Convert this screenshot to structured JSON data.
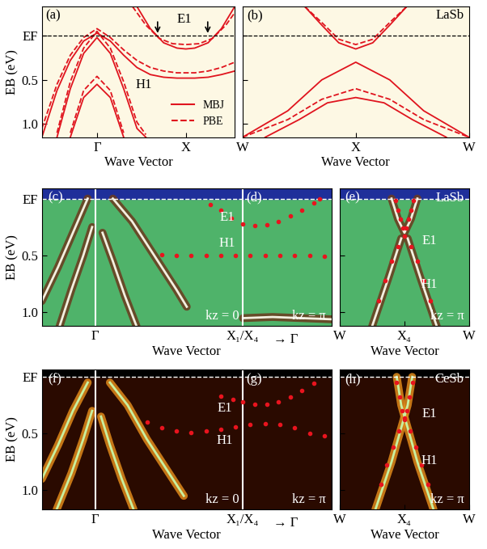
{
  "chart_data": [
    {
      "type": "line",
      "xlabel": "Wave Vector",
      "ylabel": "EB (eV)",
      "xlim": [
        -0.62,
        1.55
      ],
      "ylim": [
        1.15,
        -0.33
      ],
      "xticks": [
        {
          "value": 0,
          "label": "Γ"
        },
        {
          "value": 1,
          "label": "X"
        }
      ],
      "yticks": [
        {
          "value": 0,
          "label": "EF"
        },
        0.5,
        1.0
      ],
      "legend": "lower right",
      "annotations": [
        "(a)",
        "E1",
        "H1"
      ],
      "series": [
        {
          "name": "MBJ",
          "color": "#e0141e",
          "line_style": "solid",
          "curves": [
            {
              "x": [
                -0.62,
                -0.45,
                -0.3,
                -0.15,
                0,
                0.15,
                0.3,
                0.45,
                0.6,
                0.75,
                0.9,
                1.0,
                1.1,
                1.25,
                1.4,
                1.55
              ],
              "y": [
                1.15,
                0.62,
                0.28,
                0.06,
                -0.03,
                0.06,
                0.22,
                0.36,
                0.44,
                0.47,
                0.48,
                0.48,
                0.48,
                0.47,
                0.44,
                0.4
              ]
            },
            {
              "x": [
                -0.45,
                -0.3,
                -0.15,
                0,
                0.15,
                0.3,
                0.45,
                0.55
              ],
              "y": [
                1.15,
                0.6,
                0.2,
                0.02,
                0.2,
                0.6,
                1.05,
                1.15
              ]
            },
            {
              "x": [
                -0.3,
                -0.15,
                0,
                0.15,
                0.3
              ],
              "y": [
                1.15,
                0.7,
                0.55,
                0.7,
                1.15
              ]
            },
            {
              "x": [
                0.45,
                0.6,
                0.75,
                0.9,
                1.0,
                1.1,
                1.25,
                1.4,
                1.55
              ],
              "y": [
                -0.33,
                -0.08,
                0.08,
                0.14,
                0.15,
                0.14,
                0.08,
                -0.08,
                -0.33
              ]
            }
          ]
        },
        {
          "name": "PBE",
          "color": "#e0141e",
          "line_style": "dashed",
          "curves": [
            {
              "x": [
                -0.62,
                -0.45,
                -0.3,
                -0.15,
                0,
                0.15,
                0.3,
                0.45,
                0.6,
                0.75,
                0.9,
                1.0,
                1.1,
                1.25,
                1.4,
                1.55
              ],
              "y": [
                1.05,
                0.55,
                0.22,
                0.02,
                -0.08,
                0.02,
                0.16,
                0.28,
                0.36,
                0.4,
                0.42,
                0.42,
                0.42,
                0.4,
                0.36,
                0.3
              ]
            },
            {
              "x": [
                -0.45,
                -0.3,
                -0.15,
                0,
                0.15,
                0.3,
                0.45,
                0.55
              ],
              "y": [
                1.1,
                0.52,
                0.14,
                -0.05,
                0.14,
                0.52,
                0.98,
                1.12
              ]
            },
            {
              "x": [
                -0.3,
                -0.15,
                0,
                0.15,
                0.3
              ],
              "y": [
                1.1,
                0.62,
                0.46,
                0.62,
                1.1
              ]
            },
            {
              "x": [
                0.4,
                0.55,
                0.7,
                0.85,
                1.0,
                1.15,
                1.3,
                1.45,
                1.6
              ],
              "y": [
                -0.33,
                -0.12,
                0.03,
                0.09,
                0.1,
                0.09,
                0.03,
                -0.12,
                -0.33
              ]
            }
          ]
        }
      ]
    },
    {
      "type": "line",
      "xlabel": "Wave Vector",
      "xlim": [
        -1,
        1
      ],
      "ylim": [
        1.15,
        -0.33
      ],
      "xticks": [
        {
          "value": -1,
          "label": "W"
        },
        {
          "value": 0,
          "label": "X"
        },
        {
          "value": 1,
          "label": "W"
        }
      ],
      "yticks": [
        {
          "value": 0,
          "label": "EF"
        },
        0.5,
        1.0
      ],
      "tick_labels": "x",
      "annotations": [
        "(b)",
        "LaSb"
      ],
      "series": [
        {
          "color": "#e0141e",
          "line_style": "solid",
          "curves": [
            {
              "x": [
                -0.45,
                -0.3,
                -0.15,
                0,
                0.15,
                0.3,
                0.45
              ],
              "y": [
                -0.33,
                -0.12,
                0.08,
                0.15,
                0.08,
                -0.12,
                -0.33
              ]
            },
            {
              "x": [
                -1,
                -0.6,
                -0.3,
                0,
                0.3,
                0.6,
                1
              ],
              "y": [
                1.15,
                0.85,
                0.5,
                0.3,
                0.5,
                0.85,
                1.15
              ]
            },
            {
              "x": [
                -0.8,
                -0.5,
                -0.25,
                0,
                0.25,
                0.5,
                0.8
              ],
              "y": [
                1.15,
                0.95,
                0.76,
                0.7,
                0.76,
                0.95,
                1.15
              ]
            }
          ]
        },
        {
          "color": "#e0141e",
          "line_style": "dashed",
          "curves": [
            {
              "x": [
                -0.45,
                -0.3,
                -0.15,
                0,
                0.15,
                0.3,
                0.45
              ],
              "y": [
                -0.33,
                -0.15,
                0.04,
                0.1,
                0.04,
                -0.15,
                -0.33
              ]
            },
            {
              "x": [
                -1,
                -0.6,
                -0.3,
                0,
                0.3,
                0.6,
                1
              ],
              "y": [
                1.15,
                0.95,
                0.72,
                0.6,
                0.72,
                0.95,
                1.15
              ]
            }
          ]
        }
      ]
    },
    {
      "type": "image",
      "xlabel": "Wave Vector",
      "ylabel": "EB (eV)",
      "xlim": [
        -0.36,
        1.6
      ],
      "ylim": [
        1.12,
        -0.09
      ],
      "xticks": [
        {
          "value": 0,
          "label": "Γ"
        },
        {
          "value": 1,
          "label": "X₁/X₄"
        }
      ],
      "yticks": [
        {
          "value": 0,
          "label": "EF"
        },
        0.5,
        1.0
      ],
      "annotations": [
        "(c)",
        "(d)",
        "E1",
        "H1",
        "kz = 0",
        "kz = π",
        "→ Γ"
      ],
      "bands": [
        {
          "x": [
            -0.05,
            -0.15,
            -0.25,
            -0.36
          ],
          "y": [
            0.0,
            0.3,
            0.6,
            0.9
          ]
        },
        {
          "x": [
            -0.02,
            -0.08,
            -0.16,
            -0.24
          ],
          "y": [
            0.25,
            0.5,
            0.8,
            1.12
          ]
        },
        {
          "x": [
            0.12,
            0.25,
            0.4,
            0.55,
            0.62
          ],
          "y": [
            0.0,
            0.2,
            0.5,
            0.8,
            0.95
          ]
        },
        {
          "x": [
            0.05,
            0.12,
            0.2,
            0.28
          ],
          "y": [
            0.3,
            0.55,
            0.85,
            1.12
          ]
        },
        {
          "x": [
            1.0,
            1.2,
            1.4,
            1.6
          ],
          "y": [
            1.05,
            1.04,
            1.05,
            1.06
          ]
        }
      ],
      "series": [
        {
          "color": "#e8141e",
          "marker": "o",
          "x": [
            0.78,
            0.85,
            0.92,
            1.0,
            1.08,
            1.16,
            1.24,
            1.32,
            1.4,
            1.48,
            1.52
          ],
          "values": [
            0.05,
            0.1,
            0.17,
            0.22,
            0.24,
            0.23,
            0.2,
            0.15,
            0.1,
            0.04,
            0.0
          ]
        },
        {
          "color": "#e8141e",
          "marker": "o",
          "x": [
            0.45,
            0.55,
            0.65,
            0.75,
            0.85,
            0.95,
            1.05,
            1.15,
            1.25,
            1.35,
            1.45,
            1.55
          ],
          "values": [
            0.49,
            0.5,
            0.5,
            0.5,
            0.5,
            0.5,
            0.5,
            0.5,
            0.5,
            0.5,
            0.5,
            0.51
          ]
        }
      ]
    },
    {
      "type": "image",
      "xlabel": "Wave Vector",
      "xlim": [
        -1,
        1
      ],
      "ylim": [
        1.12,
        -0.09
      ],
      "xticks": [
        {
          "value": -1,
          "label": "W"
        },
        {
          "value": 0,
          "label": "X₄"
        },
        {
          "value": 1,
          "label": "W"
        }
      ],
      "yticks": [
        {
          "value": 0,
          "label": "EF"
        },
        0.5,
        1.0
      ],
      "tick_labels": "x",
      "annotations": [
        "(e)",
        "LaSb",
        "E1",
        "H1",
        "kz = π"
      ],
      "bands": [
        {
          "x": [
            -0.05,
            -0.25,
            -0.5
          ],
          "y": [
            0.35,
            0.7,
            1.12
          ]
        },
        {
          "x": [
            0.05,
            0.25,
            0.5
          ],
          "y": [
            0.35,
            0.7,
            1.12
          ]
        },
        {
          "x": [
            -0.2,
            -0.1,
            0,
            0.1,
            0.2
          ],
          "y": [
            0.0,
            0.18,
            0.3,
            0.18,
            0.0
          ]
        }
      ],
      "series": [
        {
          "color": "#e8141e",
          "marker": "o",
          "x": [
            -0.14,
            -0.1,
            -0.06,
            -0.02,
            0.02,
            0.06,
            0.1,
            0.14
          ],
          "values": [
            0.02,
            0.1,
            0.18,
            0.26,
            0.26,
            0.18,
            0.1,
            0.02
          ]
        },
        {
          "color": "#e8141e",
          "marker": "o",
          "x": [
            -0.4,
            -0.3,
            -0.2,
            -0.1,
            0,
            0.1,
            0.2,
            0.3,
            0.4
          ],
          "values": [
            0.9,
            0.72,
            0.55,
            0.42,
            0.33,
            0.42,
            0.55,
            0.72,
            0.9
          ]
        }
      ]
    },
    {
      "type": "image",
      "xlabel": "Wave Vector",
      "ylabel": "EB (eV)",
      "xlim": [
        -0.36,
        1.6
      ],
      "ylim": [
        1.17,
        -0.065
      ],
      "xticks": [
        {
          "value": 0,
          "label": "Γ"
        },
        {
          "value": 1,
          "label": "X₁/X₄"
        }
      ],
      "yticks": [
        {
          "value": 0,
          "label": "EF"
        },
        0.5,
        1.0
      ],
      "annotations": [
        "(f)",
        "(g)",
        "E1",
        "H1",
        "kz = 0",
        "kz = π",
        "→ Γ"
      ],
      "bands": [
        {
          "x": [
            -0.05,
            -0.15,
            -0.25,
            -0.36
          ],
          "y": [
            0.05,
            0.3,
            0.6,
            0.9
          ]
        },
        {
          "x": [
            -0.02,
            -0.08,
            -0.16,
            -0.26
          ],
          "y": [
            0.3,
            0.55,
            0.85,
            1.17
          ]
        },
        {
          "x": [
            0.1,
            0.22,
            0.35,
            0.5,
            0.6
          ],
          "y": [
            0.05,
            0.25,
            0.55,
            0.85,
            1.05
          ]
        },
        {
          "x": [
            0.04,
            0.1,
            0.18,
            0.26
          ],
          "y": [
            0.35,
            0.6,
            0.9,
            1.17
          ]
        }
      ],
      "series": [
        {
          "color": "#e8141e",
          "marker": "o",
          "x": [
            0.85,
            0.93,
            1.0,
            1.08,
            1.16,
            1.24,
            1.32,
            1.4,
            1.48
          ],
          "values": [
            0.17,
            0.2,
            0.22,
            0.24,
            0.24,
            0.22,
            0.18,
            0.12,
            0.06
          ]
        },
        {
          "color": "#e8141e",
          "marker": "o",
          "x": [
            0.35,
            0.45,
            0.55,
            0.65,
            0.75,
            0.85,
            0.95,
            1.05,
            1.15,
            1.25,
            1.35,
            1.45,
            1.55
          ],
          "values": [
            0.4,
            0.45,
            0.48,
            0.49,
            0.48,
            0.46,
            0.44,
            0.42,
            0.41,
            0.42,
            0.45,
            0.5,
            0.52
          ]
        }
      ]
    },
    {
      "type": "image",
      "xlabel": "Wave Vector",
      "xlim": [
        -1,
        1
      ],
      "ylim": [
        1.17,
        -0.065
      ],
      "xticks": [
        {
          "value": -1,
          "label": "W"
        },
        {
          "value": 0,
          "label": "X₄"
        },
        {
          "value": 1,
          "label": "W"
        }
      ],
      "yticks": [
        {
          "value": 0,
          "label": "EF"
        },
        0.5,
        1.0
      ],
      "tick_labels": "x",
      "annotations": [
        "(h)",
        "CeSb",
        "E1",
        "H1",
        "kz = π"
      ],
      "bands": [
        {
          "x": [
            -0.12,
            -0.05,
            0.05,
            0.2,
            0.45
          ],
          "y": [
            0.0,
            0.25,
            0.45,
            0.75,
            1.17
          ]
        },
        {
          "x": [
            0.12,
            0.05,
            -0.05,
            -0.2,
            -0.45
          ],
          "y": [
            0.0,
            0.25,
            0.45,
            0.75,
            1.17
          ]
        }
      ],
      "series": [
        {
          "color": "#e8141e",
          "marker": "o",
          "x": [
            -0.12,
            -0.08,
            -0.04,
            0,
            0.04,
            0.08,
            0.12
          ],
          "values": [
            0.05,
            0.18,
            0.3,
            0.36,
            0.3,
            0.18,
            0.05
          ]
        },
        {
          "color": "#e8141e",
          "marker": "o",
          "x": [
            -0.36,
            -0.27,
            -0.18,
            -0.09,
            0,
            0.09,
            0.18,
            0.27,
            0.36
          ],
          "values": [
            0.95,
            0.78,
            0.62,
            0.48,
            0.38,
            0.48,
            0.62,
            0.78,
            0.95
          ]
        }
      ]
    }
  ]
}
